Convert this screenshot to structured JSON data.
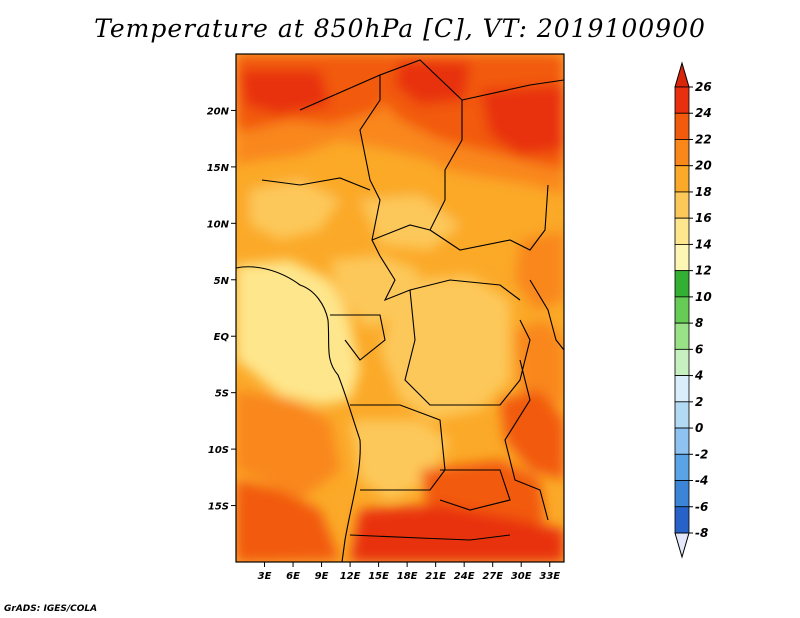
{
  "title": "Temperature at 850hPa [C], VT: 2019100900",
  "credit": "GrADS: IGES/COLA",
  "map": {
    "lon_range": [
      0,
      34.5
    ],
    "lat_range": [
      -20,
      25
    ],
    "lon_ticks": [
      {
        "value": 3,
        "label": "3E"
      },
      {
        "value": 6,
        "label": "6E"
      },
      {
        "value": 9,
        "label": "9E"
      },
      {
        "value": 12,
        "label": "12E"
      },
      {
        "value": 15,
        "label": "15E"
      },
      {
        "value": 18,
        "label": "18E"
      },
      {
        "value": 21,
        "label": "21E"
      },
      {
        "value": 24,
        "label": "24E"
      },
      {
        "value": 27,
        "label": "27E"
      },
      {
        "value": 30,
        "label": "30E"
      },
      {
        "value": 33,
        "label": "33E"
      }
    ],
    "lat_ticks": [
      {
        "value": 20,
        "label": "20N"
      },
      {
        "value": 15,
        "label": "15N"
      },
      {
        "value": 10,
        "label": "10N"
      },
      {
        "value": 5,
        "label": "5N"
      },
      {
        "value": 0,
        "label": "EQ"
      },
      {
        "value": -5,
        "label": "5S"
      },
      {
        "value": -10,
        "label": "10S"
      },
      {
        "value": -15,
        "label": "15S"
      }
    ]
  },
  "colorbar": {
    "labels": [
      "26",
      "24",
      "22",
      "20",
      "18",
      "16",
      "14",
      "12",
      "10",
      "8",
      "6",
      "4",
      "2",
      "0",
      "-2",
      "-4",
      "-6",
      "-8"
    ],
    "colors": [
      "#e8300f",
      "#f25a0e",
      "#f9871a",
      "#fba928",
      "#fdc85a",
      "#fee68c",
      "#fef6b4",
      "#33b033",
      "#66cc55",
      "#99e288",
      "#c7f0c0",
      "#d9eefa",
      "#b3daf5",
      "#8ec2f0",
      "#5aa3e6",
      "#3a85d8",
      "#2662c8",
      "#1a43b0",
      "#0d2a8c",
      "#08125e"
    ],
    "top_color": "#d9250a",
    "bottom_color": "#e4e8fb"
  }
}
